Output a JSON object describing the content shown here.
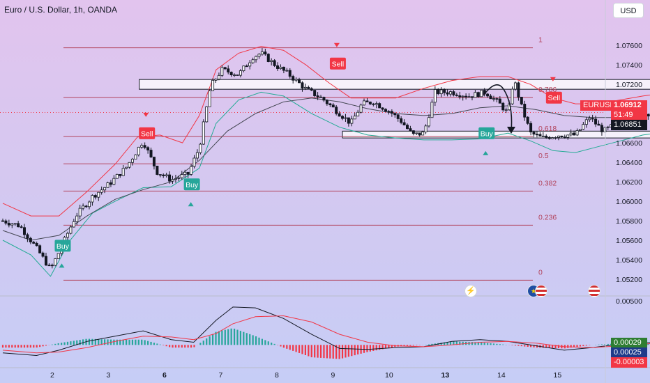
{
  "header": {
    "title": "Euro / U.S. Dollar, 1h, OANDA",
    "currency_button": "USD"
  },
  "colors": {
    "bull": "#131722",
    "bear": "#131722",
    "upper_band": "#f23645",
    "lower_band": "#22ab94",
    "ma": "#434651",
    "fib_line": "#b2435c",
    "sell_label": "#f23645",
    "buy_label": "#26a69a",
    "macd_line": "#131722",
    "signal_line": "#f23645",
    "hist_pos": "#26a69a",
    "hist_neg": "#f23645"
  },
  "price_tags": {
    "symbol": "EURUSD",
    "last_price": "1.06912",
    "countdown": "51:49",
    "prev_close": "1.06851"
  },
  "macd_tags": [
    "0.00029",
    "0.00025",
    "-0.00003"
  ],
  "icons": [
    "lightning-icon",
    "eu-flag-icon",
    "us-flag-icon"
  ],
  "chart_data": [
    {
      "type": "candlestick",
      "x_tick_labels": [
        "2",
        "3",
        "6",
        "7",
        "8",
        "9",
        "10",
        "13",
        "14",
        "15"
      ],
      "y_tick_labels": [
        "1.07600",
        "1.07400",
        "1.07200",
        "1.07000",
        "1.06800",
        "1.06600",
        "1.06400",
        "1.06200",
        "1.06000",
        "1.05800",
        "1.05600",
        "1.05400",
        "1.05200"
      ],
      "ylim": [
        1.051,
        1.0778
      ],
      "fib_levels": [
        {
          "label": "1",
          "price": 1.07575
        },
        {
          "label": "0.786",
          "price": 1.07065
        },
        {
          "label": "0.618",
          "price": 1.06665
        },
        {
          "label": "0.5",
          "price": 1.06385
        },
        {
          "label": "0.382",
          "price": 1.06105
        },
        {
          "label": "0.236",
          "price": 1.05755
        },
        {
          "label": "0",
          "price": 1.0519
        }
      ],
      "zones": [
        {
          "from_day": 3.48,
          "to_day": 13.9,
          "low": 1.0715,
          "high": 1.0725
        },
        {
          "from_day": 7.1,
          "to_day": 13.78,
          "low": 1.0665,
          "high": 1.0672
        }
      ],
      "signals": [
        {
          "label": "Sell",
          "day": 2.55,
          "price": 1.06695
        },
        {
          "label": "Sell",
          "day": 5.95,
          "price": 1.0741
        },
        {
          "label": "Sell",
          "day": 9.8,
          "price": 1.0706
        },
        {
          "label": "Buy",
          "day": 1.05,
          "price": 1.0554
        },
        {
          "label": "Buy",
          "day": 3.35,
          "price": 1.0617
        },
        {
          "label": "Buy",
          "day": 8.6,
          "price": 1.06695
        }
      ],
      "price_path": [
        {
          "day": 0.0,
          "price": 1.058
        },
        {
          "day": 0.3,
          "price": 1.0575
        },
        {
          "day": 0.6,
          "price": 1.0552
        },
        {
          "day": 0.85,
          "price": 1.053
        },
        {
          "day": 1.0,
          "price": 1.0548
        },
        {
          "day": 1.3,
          "price": 1.0585
        },
        {
          "day": 1.6,
          "price": 1.0605
        },
        {
          "day": 1.9,
          "price": 1.0618
        },
        {
          "day": 2.2,
          "price": 1.0635
        },
        {
          "day": 2.5,
          "price": 1.0662
        },
        {
          "day": 2.75,
          "price": 1.063
        },
        {
          "day": 3.0,
          "price": 1.0622
        },
        {
          "day": 3.3,
          "price": 1.0628
        },
        {
          "day": 3.5,
          "price": 1.0655
        },
        {
          "day": 3.7,
          "price": 1.0718
        },
        {
          "day": 3.9,
          "price": 1.0735
        },
        {
          "day": 4.2,
          "price": 1.073
        },
        {
          "day": 4.45,
          "price": 1.0748
        },
        {
          "day": 4.6,
          "price": 1.0752
        },
        {
          "day": 4.85,
          "price": 1.074
        },
        {
          "day": 5.1,
          "price": 1.073
        },
        {
          "day": 5.4,
          "price": 1.0715
        },
        {
          "day": 5.7,
          "price": 1.0705
        },
        {
          "day": 6.0,
          "price": 1.069
        },
        {
          "day": 6.2,
          "price": 1.068
        },
        {
          "day": 6.4,
          "price": 1.07
        },
        {
          "day": 6.6,
          "price": 1.0702
        },
        {
          "day": 6.9,
          "price": 1.0692
        },
        {
          "day": 7.1,
          "price": 1.0682
        },
        {
          "day": 7.3,
          "price": 1.0668
        },
        {
          "day": 7.5,
          "price": 1.067
        },
        {
          "day": 7.7,
          "price": 1.0712
        },
        {
          "day": 8.0,
          "price": 1.0712
        },
        {
          "day": 8.3,
          "price": 1.0708
        },
        {
          "day": 8.6,
          "price": 1.0712
        },
        {
          "day": 8.85,
          "price": 1.07
        },
        {
          "day": 9.0,
          "price": 1.069
        },
        {
          "day": 9.1,
          "price": 1.0726
        },
        {
          "day": 9.25,
          "price": 1.0695
        },
        {
          "day": 9.4,
          "price": 1.067
        },
        {
          "day": 9.6,
          "price": 1.0665
        },
        {
          "day": 9.9,
          "price": 1.0668
        },
        {
          "day": 10.2,
          "price": 1.0668
        },
        {
          "day": 10.45,
          "price": 1.0686
        },
        {
          "day": 10.7,
          "price": 1.0672
        },
        {
          "day": 10.95,
          "price": 1.068
        },
        {
          "day": 11.2,
          "price": 1.0686
        },
        {
          "day": 11.45,
          "price": 1.069
        },
        {
          "day": 11.65,
          "price": 1.0692
        }
      ],
      "upper_band": [
        {
          "day": 0.0,
          "price": 1.0598
        },
        {
          "day": 0.5,
          "price": 1.0585
        },
        {
          "day": 1.0,
          "price": 1.0585
        },
        {
          "day": 1.5,
          "price": 1.061
        },
        {
          "day": 2.0,
          "price": 1.0638
        },
        {
          "day": 2.4,
          "price": 1.0666
        },
        {
          "day": 2.8,
          "price": 1.0668
        },
        {
          "day": 3.2,
          "price": 1.066
        },
        {
          "day": 3.5,
          "price": 1.0688
        },
        {
          "day": 3.8,
          "price": 1.0735
        },
        {
          "day": 4.2,
          "price": 1.0752
        },
        {
          "day": 4.6,
          "price": 1.0759
        },
        {
          "day": 5.0,
          "price": 1.0755
        },
        {
          "day": 5.4,
          "price": 1.074
        },
        {
          "day": 5.8,
          "price": 1.0722
        },
        {
          "day": 6.2,
          "price": 1.0706
        },
        {
          "day": 6.6,
          "price": 1.0706
        },
        {
          "day": 7.0,
          "price": 1.0706
        },
        {
          "day": 7.5,
          "price": 1.0716
        },
        {
          "day": 8.0,
          "price": 1.0724
        },
        {
          "day": 8.5,
          "price": 1.0728
        },
        {
          "day": 9.0,
          "price": 1.0728
        },
        {
          "day": 9.4,
          "price": 1.072
        },
        {
          "day": 9.8,
          "price": 1.0706
        },
        {
          "day": 10.2,
          "price": 1.07
        },
        {
          "day": 10.6,
          "price": 1.07
        },
        {
          "day": 11.0,
          "price": 1.0704
        },
        {
          "day": 11.4,
          "price": 1.0708
        },
        {
          "day": 11.65,
          "price": 1.071
        }
      ],
      "lower_band": [
        {
          "day": 0.0,
          "price": 1.056
        },
        {
          "day": 0.5,
          "price": 1.0545
        },
        {
          "day": 0.85,
          "price": 1.0523
        },
        {
          "day": 1.2,
          "price": 1.056
        },
        {
          "day": 1.6,
          "price": 1.0588
        },
        {
          "day": 2.0,
          "price": 1.06
        },
        {
          "day": 2.5,
          "price": 1.0614
        },
        {
          "day": 3.0,
          "price": 1.0615
        },
        {
          "day": 3.5,
          "price": 1.0634
        },
        {
          "day": 3.8,
          "price": 1.068
        },
        {
          "day": 4.2,
          "price": 1.0704
        },
        {
          "day": 4.6,
          "price": 1.0712
        },
        {
          "day": 5.0,
          "price": 1.0708
        },
        {
          "day": 5.5,
          "price": 1.069
        },
        {
          "day": 6.0,
          "price": 1.0676
        },
        {
          "day": 6.5,
          "price": 1.0668
        },
        {
          "day": 7.0,
          "price": 1.0665
        },
        {
          "day": 7.5,
          "price": 1.0663
        },
        {
          "day": 8.0,
          "price": 1.0663
        },
        {
          "day": 8.5,
          "price": 1.0664
        },
        {
          "day": 9.0,
          "price": 1.067
        },
        {
          "day": 9.4,
          "price": 1.0662
        },
        {
          "day": 9.8,
          "price": 1.0652
        },
        {
          "day": 10.2,
          "price": 1.065
        },
        {
          "day": 10.6,
          "price": 1.0656
        },
        {
          "day": 11.0,
          "price": 1.0662
        },
        {
          "day": 11.4,
          "price": 1.0668
        },
        {
          "day": 11.65,
          "price": 1.067
        }
      ],
      "moving_average": [
        {
          "day": 0.0,
          "price": 1.057
        },
        {
          "day": 0.5,
          "price": 1.056
        },
        {
          "day": 1.0,
          "price": 1.0565
        },
        {
          "day": 1.5,
          "price": 1.0585
        },
        {
          "day": 2.0,
          "price": 1.0602
        },
        {
          "day": 2.5,
          "price": 1.0612
        },
        {
          "day": 3.0,
          "price": 1.062
        },
        {
          "day": 3.5,
          "price": 1.0642
        },
        {
          "day": 4.0,
          "price": 1.0672
        },
        {
          "day": 4.5,
          "price": 1.069
        },
        {
          "day": 5.0,
          "price": 1.0702
        },
        {
          "day": 5.5,
          "price": 1.0706
        },
        {
          "day": 6.0,
          "price": 1.0702
        },
        {
          "day": 6.5,
          "price": 1.0695
        },
        {
          "day": 7.0,
          "price": 1.069
        },
        {
          "day": 7.5,
          "price": 1.0688
        },
        {
          "day": 8.0,
          "price": 1.069
        },
        {
          "day": 8.5,
          "price": 1.0696
        },
        {
          "day": 9.0,
          "price": 1.0698
        },
        {
          "day": 9.5,
          "price": 1.0694
        },
        {
          "day": 10.0,
          "price": 1.0688
        },
        {
          "day": 10.5,
          "price": 1.0686
        },
        {
          "day": 11.0,
          "price": 1.0686
        },
        {
          "day": 11.65,
          "price": 1.0688
        }
      ]
    },
    {
      "type": "macd",
      "y_tick_labels": [
        "0.00500"
      ],
      "ylim": [
        -0.0025,
        0.005
      ],
      "macd": [
        {
          "day": 0.0,
          "price": -0.0009
        },
        {
          "day": 0.6,
          "price": -0.0012
        },
        {
          "day": 1.0,
          "price": -0.0006
        },
        {
          "day": 1.5,
          "price": 0.0004
        },
        {
          "day": 2.0,
          "price": 0.001
        },
        {
          "day": 2.5,
          "price": 0.0016
        },
        {
          "day": 3.0,
          "price": 0.0006
        },
        {
          "day": 3.4,
          "price": 0.0003
        },
        {
          "day": 3.8,
          "price": 0.0028
        },
        {
          "day": 4.1,
          "price": 0.0043
        },
        {
          "day": 4.5,
          "price": 0.0042
        },
        {
          "day": 5.0,
          "price": 0.003
        },
        {
          "day": 5.5,
          "price": 0.0012
        },
        {
          "day": 6.0,
          "price": -0.0004
        },
        {
          "day": 6.5,
          "price": -0.0005
        },
        {
          "day": 7.0,
          "price": -0.0003
        },
        {
          "day": 7.5,
          "price": -0.0002
        },
        {
          "day": 8.0,
          "price": 0.0004
        },
        {
          "day": 8.5,
          "price": 0.0006
        },
        {
          "day": 9.0,
          "price": 0.0004
        },
        {
          "day": 9.5,
          "price": -0.0001
        },
        {
          "day": 10.0,
          "price": -0.0006
        },
        {
          "day": 10.5,
          "price": -0.0003
        },
        {
          "day": 11.0,
          "price": 0.0001
        },
        {
          "day": 11.65,
          "price": 0.0003
        }
      ],
      "signal": [
        {
          "day": 0.0,
          "price": -0.0006
        },
        {
          "day": 0.6,
          "price": -0.0009
        },
        {
          "day": 1.0,
          "price": -0.0008
        },
        {
          "day": 1.5,
          "price": -0.0003
        },
        {
          "day": 2.0,
          "price": 0.0004
        },
        {
          "day": 2.5,
          "price": 0.001
        },
        {
          "day": 3.0,
          "price": 0.0009
        },
        {
          "day": 3.4,
          "price": 0.0006
        },
        {
          "day": 3.8,
          "price": 0.0013
        },
        {
          "day": 4.1,
          "price": 0.0024
        },
        {
          "day": 4.5,
          "price": 0.0032
        },
        {
          "day": 5.0,
          "price": 0.0033
        },
        {
          "day": 5.5,
          "price": 0.0026
        },
        {
          "day": 6.0,
          "price": 0.0012
        },
        {
          "day": 6.5,
          "price": 0.0003
        },
        {
          "day": 7.0,
          "price": -0.0001
        },
        {
          "day": 7.5,
          "price": -0.0002
        },
        {
          "day": 8.0,
          "price": 0.0
        },
        {
          "day": 8.5,
          "price": 0.0003
        },
        {
          "day": 9.0,
          "price": 0.0004
        },
        {
          "day": 9.5,
          "price": 0.0002
        },
        {
          "day": 10.0,
          "price": -0.0002
        },
        {
          "day": 10.5,
          "price": -0.0003
        },
        {
          "day": 11.0,
          "price": -0.0001
        },
        {
          "day": 11.65,
          "price": 0.0002
        }
      ]
    }
  ]
}
